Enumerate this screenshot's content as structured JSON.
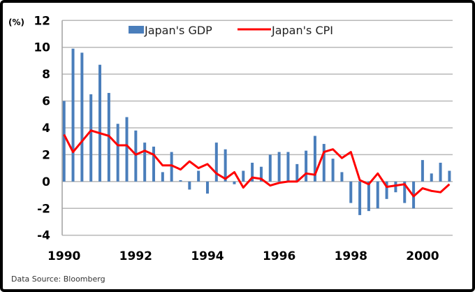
{
  "chart_data": {
    "type": "bar+line",
    "unit_label": "(%)",
    "source": "Data Source: Bloomberg",
    "ylim": [
      -4,
      12
    ],
    "yticks": [
      -4,
      -2,
      0,
      2,
      4,
      6,
      8,
      10,
      12
    ],
    "xtick_labels": [
      "1990",
      "1992",
      "1994",
      "1996",
      "1998",
      "2000"
    ],
    "x_start_year": 1990,
    "periods_per_year": 4,
    "grid": true,
    "legend": "top",
    "series": [
      {
        "name": "Japan's GDP",
        "kind": "bar",
        "color": "#4a7ebb",
        "values": [
          6.0,
          9.9,
          9.6,
          6.5,
          8.7,
          6.6,
          4.3,
          4.8,
          3.8,
          2.9,
          2.6,
          0.7,
          2.2,
          0.1,
          -0.6,
          0.8,
          -0.9,
          2.9,
          2.4,
          -0.2,
          0.8,
          1.4,
          1.1,
          2.0,
          2.2,
          2.2,
          1.3,
          2.3,
          3.4,
          2.8,
          1.7,
          0.7,
          -1.6,
          -2.5,
          -2.2,
          -2.0,
          -1.3,
          -0.8,
          -1.6,
          -2.0,
          1.6,
          0.6,
          1.4,
          0.8
        ]
      },
      {
        "name": "Japan's CPI",
        "kind": "line",
        "color": "#ff0000",
        "values": [
          3.5,
          2.2,
          3.0,
          3.8,
          3.6,
          3.4,
          2.7,
          2.7,
          2.0,
          2.3,
          2.0,
          1.2,
          1.2,
          0.9,
          1.5,
          1.0,
          1.3,
          0.6,
          0.2,
          0.7,
          -0.45,
          0.3,
          0.2,
          -0.3,
          -0.1,
          0.0,
          0.0,
          0.6,
          0.5,
          2.2,
          2.4,
          1.75,
          2.2,
          0.1,
          -0.2,
          0.6,
          -0.4,
          -0.3,
          -0.2,
          -1.1,
          -0.5,
          -0.7,
          -0.8,
          -0.2
        ]
      }
    ]
  }
}
